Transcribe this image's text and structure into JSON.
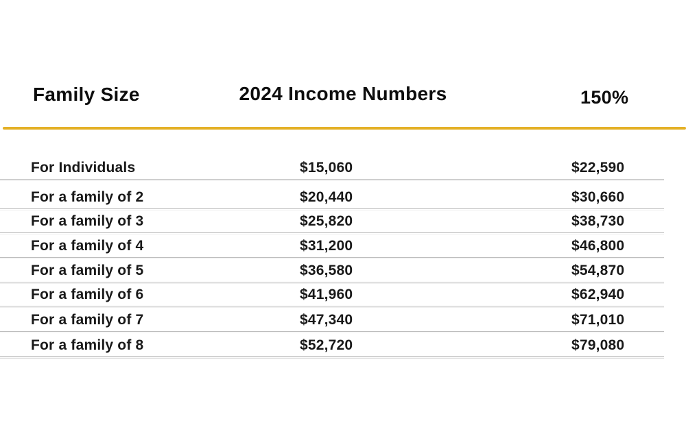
{
  "header": {
    "family_size": "Family Size",
    "income_numbers": "2024 Income Numbers",
    "pct_150": "150%"
  },
  "colors": {
    "accent_gold": "#E4B026",
    "divider_gray": "#bdbdbd",
    "text": "#191919"
  },
  "table": {
    "rows": [
      {
        "label": "For Individuals",
        "income": "$15,060",
        "pct150": "$22,590"
      },
      {
        "label": "For a family of 2",
        "income": "$20,440",
        "pct150": "$30,660"
      },
      {
        "label": "For a family of 3",
        "income": "$25,820",
        "pct150": "$38,730"
      },
      {
        "label": "For a family of 4",
        "income": "$31,200",
        "pct150": "$46,800"
      },
      {
        "label": "For a family of 5",
        "income": "$36,580",
        "pct150": "$54,870"
      },
      {
        "label": "For a family of 6",
        "income": "$41,960",
        "pct150": "$62,940"
      },
      {
        "label": "For a family of 7",
        "income": "$47,340",
        "pct150": "$71,010"
      },
      {
        "label": "For a family of 8",
        "income": "$52,720",
        "pct150": "$79,080"
      }
    ]
  },
  "chart_data": {
    "type": "table",
    "title": "2024 Income Numbers",
    "columns": [
      "Family Size",
      "2024 Income Numbers",
      "150%"
    ],
    "rows": [
      [
        "For Individuals",
        15060,
        22590
      ],
      [
        "For a family of 2",
        20440,
        30660
      ],
      [
        "For a family of 3",
        25820,
        38730
      ],
      [
        "For a family of 4",
        31200,
        46800
      ],
      [
        "For a family of 5",
        36580,
        54870
      ],
      [
        "For a family of 6",
        41960,
        62940
      ],
      [
        "For a family of 7",
        47340,
        71010
      ],
      [
        "For a family of 8",
        52720,
        79080
      ]
    ]
  }
}
